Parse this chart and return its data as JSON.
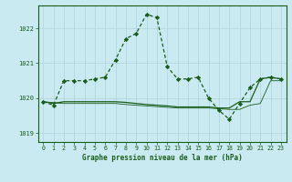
{
  "title": "Graphe pression niveau de la mer (hPa)",
  "background_color": "#c8eaf0",
  "grid_color": "#b0d4dc",
  "line_color": "#1a5c1a",
  "xlim": [
    -0.5,
    23.5
  ],
  "ylim": [
    1018.75,
    1022.65
  ],
  "yticks": [
    1019,
    1020,
    1021,
    1022
  ],
  "xticks": [
    0,
    1,
    2,
    3,
    4,
    5,
    6,
    7,
    8,
    9,
    10,
    11,
    12,
    13,
    14,
    15,
    16,
    17,
    18,
    19,
    20,
    21,
    22,
    23
  ],
  "series1_x": [
    0,
    1,
    2,
    3,
    4,
    5,
    6,
    7,
    8,
    9,
    10,
    11,
    12,
    13,
    14,
    15,
    16,
    17,
    18,
    19,
    20,
    21,
    22,
    23
  ],
  "series1_y": [
    1019.9,
    1019.8,
    1020.5,
    1020.5,
    1020.5,
    1020.55,
    1020.6,
    1021.1,
    1021.7,
    1021.85,
    1022.4,
    1022.3,
    1020.9,
    1020.55,
    1020.55,
    1020.6,
    1020.0,
    1019.65,
    1019.4,
    1019.85,
    1020.3,
    1020.55,
    1020.6,
    1020.55
  ],
  "series2_x": [
    0,
    1,
    2,
    3,
    4,
    5,
    6,
    7,
    8,
    9,
    10,
    11,
    12,
    13,
    14,
    15,
    16,
    17,
    18,
    19,
    20,
    21,
    22,
    23
  ],
  "series2_y": [
    1019.9,
    1019.85,
    1019.9,
    1019.9,
    1019.9,
    1019.9,
    1019.9,
    1019.9,
    1019.88,
    1019.85,
    1019.82,
    1019.8,
    1019.78,
    1019.75,
    1019.75,
    1019.75,
    1019.75,
    1019.72,
    1019.72,
    1019.9,
    1019.9,
    1020.55,
    1020.6,
    1020.55
  ],
  "series3_x": [
    0,
    2,
    3,
    4,
    5,
    6,
    7,
    8,
    9,
    10,
    11,
    12,
    13,
    14,
    15,
    16,
    17,
    18,
    19,
    20,
    21,
    22,
    23
  ],
  "series3_y": [
    1019.9,
    1019.85,
    1019.85,
    1019.85,
    1019.85,
    1019.85,
    1019.85,
    1019.82,
    1019.8,
    1019.78,
    1019.76,
    1019.74,
    1019.72,
    1019.72,
    1019.72,
    1019.72,
    1019.7,
    1019.68,
    1019.68,
    1019.8,
    1019.85,
    1020.5,
    1020.5
  ]
}
